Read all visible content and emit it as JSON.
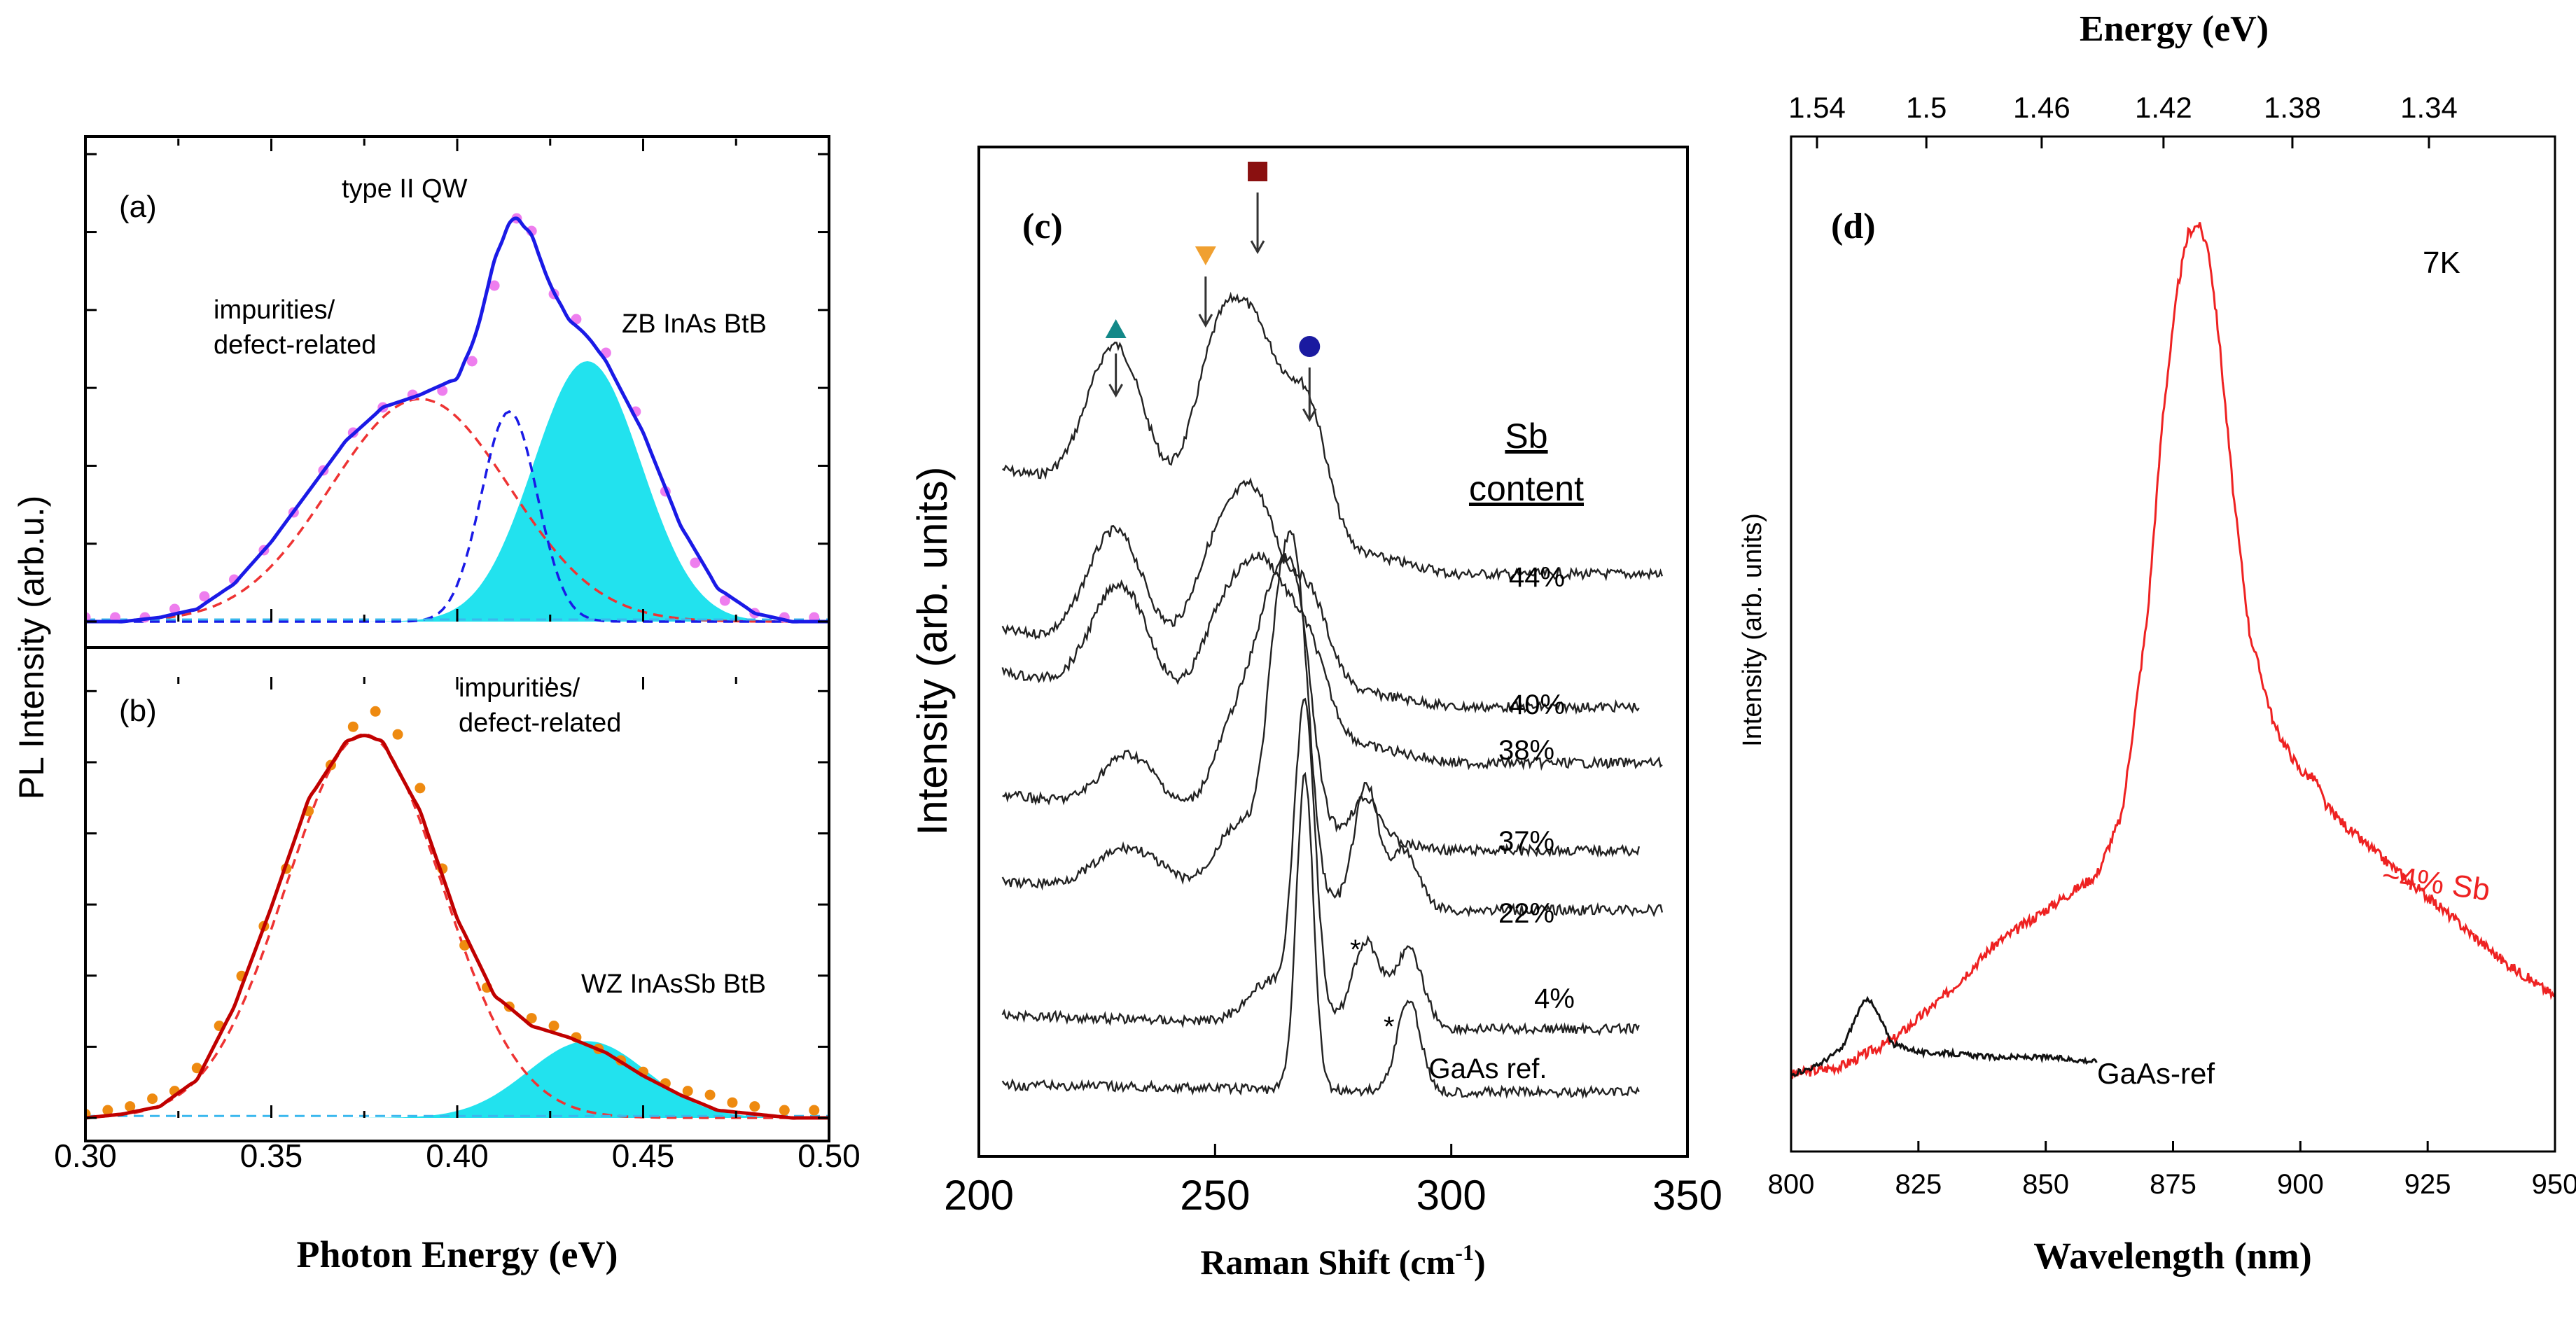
{
  "colors": {
    "axis": "#000000",
    "blue": "#1a1ae6",
    "magenta_points": "#ee7eee",
    "cyan_fill": "#22e2ee",
    "red_fit": "#c00000",
    "red_dash": "#ee3333",
    "orange_points": "#ee8a10",
    "spectrum_red": "#ee2222",
    "marker_triangle": "#138888",
    "marker_down": "#f0a030",
    "marker_square": "#8a1010",
    "marker_circle": "#1a1aa0"
  },
  "chart_data": [
    {
      "id": "a",
      "type": "line",
      "panel_label": "(a)",
      "title": "",
      "xlabel": "Photon Energy (eV)",
      "ylabel": "PL Intensity (arb.u.)",
      "xlim": [
        0.3,
        0.5
      ],
      "ylim": [
        0,
        1.15
      ],
      "grid": false,
      "annotations": [
        "type II QW",
        "impurities/",
        "defect-related",
        "ZB InAs BtB"
      ],
      "components": [
        {
          "name": "impurities/defect-related",
          "type": "gaussian",
          "center": 0.39,
          "amplitude": 0.53,
          "sigma": 0.024,
          "style": "red dashed"
        },
        {
          "name": "type II QW",
          "type": "gaussian",
          "center": 0.414,
          "amplitude": 0.5,
          "sigma": 0.0075,
          "style": "blue dashed"
        },
        {
          "name": "ZB InAs BtB",
          "type": "gaussian",
          "center": 0.435,
          "amplitude": 0.62,
          "sigma": 0.0145,
          "style": "cyan filled"
        }
      ],
      "series": [
        {
          "name": "fit",
          "x": [
            0.3,
            0.31,
            0.32,
            0.33,
            0.34,
            0.35,
            0.36,
            0.37,
            0.38,
            0.39,
            0.4,
            0.405,
            0.41,
            0.415,
            0.42,
            0.425,
            0.43,
            0.435,
            0.44,
            0.45,
            0.46,
            0.47,
            0.48,
            0.49,
            0.5
          ],
          "values": [
            0.0,
            0.0,
            0.01,
            0.03,
            0.09,
            0.19,
            0.31,
            0.43,
            0.51,
            0.54,
            0.58,
            0.68,
            0.86,
            0.97,
            0.92,
            0.8,
            0.72,
            0.68,
            0.62,
            0.45,
            0.23,
            0.08,
            0.02,
            0.0,
            0.0
          ]
        },
        {
          "name": "data",
          "x": [
            0.3,
            0.308,
            0.316,
            0.324,
            0.332,
            0.34,
            0.348,
            0.356,
            0.364,
            0.372,
            0.38,
            0.388,
            0.396,
            0.404,
            0.41,
            0.416,
            0.42,
            0.426,
            0.432,
            0.44,
            0.448,
            0.456,
            0.464,
            0.472,
            0.48,
            0.488,
            0.496
          ],
          "values": [
            0.01,
            0.01,
            0.01,
            0.03,
            0.06,
            0.1,
            0.17,
            0.26,
            0.36,
            0.45,
            0.51,
            0.54,
            0.55,
            0.62,
            0.8,
            0.96,
            0.93,
            0.78,
            0.72,
            0.64,
            0.5,
            0.31,
            0.14,
            0.05,
            0.02,
            0.01,
            0.01
          ]
        }
      ]
    },
    {
      "id": "b",
      "type": "line",
      "panel_label": "(b)",
      "title": "",
      "xlabel": "Photon Energy (eV)",
      "ylabel": "PL Intensity (arb.u.)",
      "xlim": [
        0.3,
        0.5
      ],
      "ylim": [
        0,
        1.15
      ],
      "grid": false,
      "xticks": [
        "0.30",
        "0.35",
        "0.40",
        "0.45",
        "0.50"
      ],
      "annotations": [
        "impurities/",
        "defect-related",
        "WZ InAsSb BtB"
      ],
      "components": [
        {
          "name": "impurities/defect-related",
          "type": "gaussian",
          "center": 0.375,
          "amplitude": 1.0,
          "sigma": 0.021,
          "style": "red dashed"
        },
        {
          "name": "WZ InAsSb BtB",
          "type": "gaussian",
          "center": 0.435,
          "amplitude": 0.2,
          "sigma": 0.016,
          "style": "cyan filled"
        }
      ],
      "series": [
        {
          "name": "fit",
          "x": [
            0.3,
            0.31,
            0.32,
            0.33,
            0.34,
            0.35,
            0.36,
            0.37,
            0.375,
            0.38,
            0.39,
            0.4,
            0.41,
            0.42,
            0.43,
            0.44,
            0.45,
            0.46,
            0.47,
            0.48,
            0.49,
            0.5
          ],
          "values": [
            0.0,
            0.01,
            0.03,
            0.1,
            0.29,
            0.55,
            0.83,
            0.98,
            1.0,
            0.98,
            0.8,
            0.52,
            0.32,
            0.24,
            0.21,
            0.17,
            0.11,
            0.06,
            0.02,
            0.01,
            0.0,
            0.0
          ]
        },
        {
          "name": "data",
          "x": [
            0.3,
            0.306,
            0.312,
            0.318,
            0.324,
            0.33,
            0.336,
            0.342,
            0.348,
            0.354,
            0.36,
            0.366,
            0.372,
            0.378,
            0.384,
            0.39,
            0.396,
            0.402,
            0.408,
            0.414,
            0.42,
            0.426,
            0.432,
            0.438,
            0.444,
            0.45,
            0.456,
            0.462,
            0.468,
            0.474,
            0.48,
            0.488,
            0.496
          ],
          "values": [
            0.01,
            0.02,
            0.03,
            0.05,
            0.07,
            0.13,
            0.24,
            0.37,
            0.5,
            0.65,
            0.8,
            0.92,
            1.02,
            1.06,
            1.0,
            0.86,
            0.65,
            0.45,
            0.34,
            0.29,
            0.26,
            0.24,
            0.21,
            0.18,
            0.15,
            0.12,
            0.09,
            0.07,
            0.06,
            0.04,
            0.03,
            0.02,
            0.02
          ]
        }
      ]
    },
    {
      "id": "c",
      "type": "line",
      "panel_label": "(c)",
      "title": "",
      "xlabel": "Raman Shift (cm",
      "xlabel_sup": "-1",
      "xlabel_close": ")",
      "ylabel": "Intensity (arb. units)",
      "xlim": [
        200,
        350
      ],
      "xticks": [
        "200",
        "250",
        "300",
        "350"
      ],
      "legend_title": [
        "Sb",
        "content"
      ],
      "peak_markers": [
        {
          "shape": "triangle-up",
          "x": 229
        },
        {
          "shape": "triangle-down",
          "x": 248
        },
        {
          "shape": "square",
          "x": 259
        },
        {
          "shape": "circle",
          "x": 270
        }
      ],
      "asterisks": [
        "*",
        "*"
      ],
      "series": [
        {
          "name": "44%",
          "label": "44%"
        },
        {
          "name": "40%",
          "label": "40%"
        },
        {
          "name": "38%",
          "label": "38%"
        },
        {
          "name": "37%",
          "label": "37%"
        },
        {
          "name": "22%",
          "label": "22%"
        },
        {
          "name": "4%",
          "label": "4%"
        },
        {
          "name": "GaAs ref.",
          "label": "GaAs ref."
        }
      ]
    },
    {
      "id": "d",
      "type": "line",
      "panel_label": "(d)",
      "title": "",
      "xlabel": "Wavelength (nm)",
      "ylabel": "Intensity (arb. units)",
      "top_axis_label": "Energy (eV)",
      "top_ticks": [
        "1.54",
        "1.5",
        "1.46",
        "1.42",
        "1.38",
        "1.34"
      ],
      "xlim": [
        800,
        950
      ],
      "xticks": [
        "800",
        "825",
        "850",
        "875",
        "900",
        "925",
        "950"
      ],
      "temperature_label": "7K",
      "series": [
        {
          "name": "~4% Sb",
          "x": [
            800,
            810,
            820,
            830,
            840,
            850,
            860,
            865,
            870,
            873,
            876,
            878,
            880,
            882,
            884,
            887,
            890,
            895,
            900,
            903,
            905,
            910,
            920,
            930,
            940,
            950
          ],
          "values": [
            0.02,
            0.03,
            0.06,
            0.11,
            0.17,
            0.21,
            0.25,
            0.32,
            0.55,
            0.78,
            0.93,
            0.99,
            1.0,
            0.97,
            0.87,
            0.68,
            0.53,
            0.42,
            0.37,
            0.36,
            0.33,
            0.3,
            0.25,
            0.2,
            0.15,
            0.11
          ]
        },
        {
          "name": "GaAs-ref",
          "x": [
            800,
            805,
            810,
            813,
            815,
            817,
            820,
            823,
            826,
            830,
            840,
            850,
            860
          ],
          "values": [
            0.02,
            0.03,
            0.05,
            0.09,
            0.11,
            0.09,
            0.055,
            0.05,
            0.045,
            0.045,
            0.04,
            0.04,
            0.035
          ]
        }
      ]
    }
  ]
}
